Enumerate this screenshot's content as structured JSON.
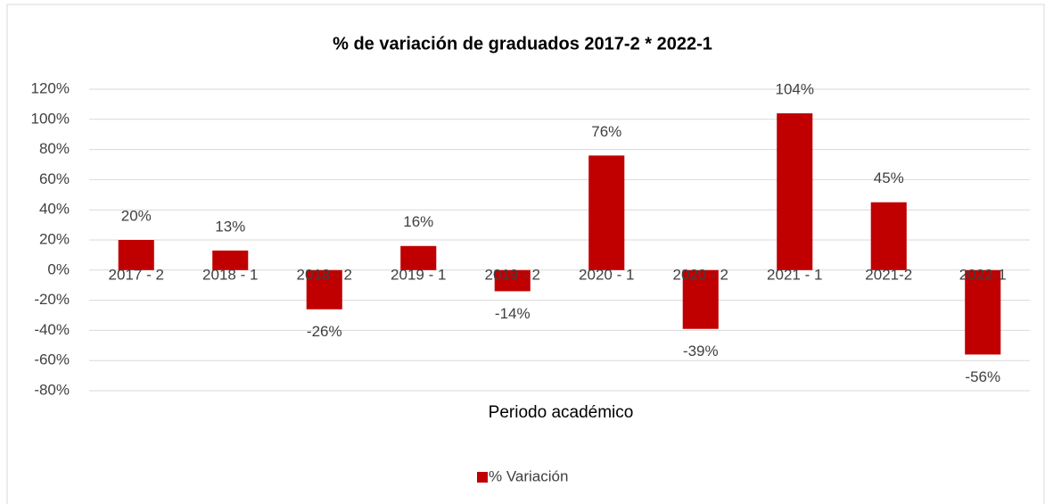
{
  "chart_data": {
    "type": "bar",
    "title": "% de variación de graduados 2017-2 * 2022-1",
    "x_label": "Periodo académico",
    "categories": [
      "2017 - 2",
      "2018 - 1",
      "2018 - 2",
      "2019 - 1",
      "2019 - 2",
      "2020 - 1",
      "2020 - 2",
      "2021 - 1",
      "2021-2",
      "2022-1"
    ],
    "series": [
      {
        "name": "% Variación",
        "color": "#c00000",
        "values": [
          20,
          13,
          -26,
          16,
          -14,
          76,
          -39,
          104,
          45,
          -56
        ],
        "value_labels": [
          "20%",
          "13%",
          "-26%",
          "16%",
          "-14%",
          "76%",
          "-39%",
          "104%",
          "45%",
          "-56%"
        ]
      }
    ],
    "ylim": [
      -80,
      120
    ],
    "yticks": [
      {
        "value": -80,
        "label": "-80%"
      },
      {
        "value": -60,
        "label": "-60%"
      },
      {
        "value": -40,
        "label": "-40%"
      },
      {
        "value": -20,
        "label": "-20%"
      },
      {
        "value": 0,
        "label": "0%"
      },
      {
        "value": 20,
        "label": "20%"
      },
      {
        "value": 40,
        "label": "40%"
      },
      {
        "value": 60,
        "label": "60%"
      },
      {
        "value": 80,
        "label": "80%"
      },
      {
        "value": 100,
        "label": "100%"
      },
      {
        "value": 120,
        "label": "120%"
      }
    ],
    "grid": true,
    "legend": "bottom"
  }
}
